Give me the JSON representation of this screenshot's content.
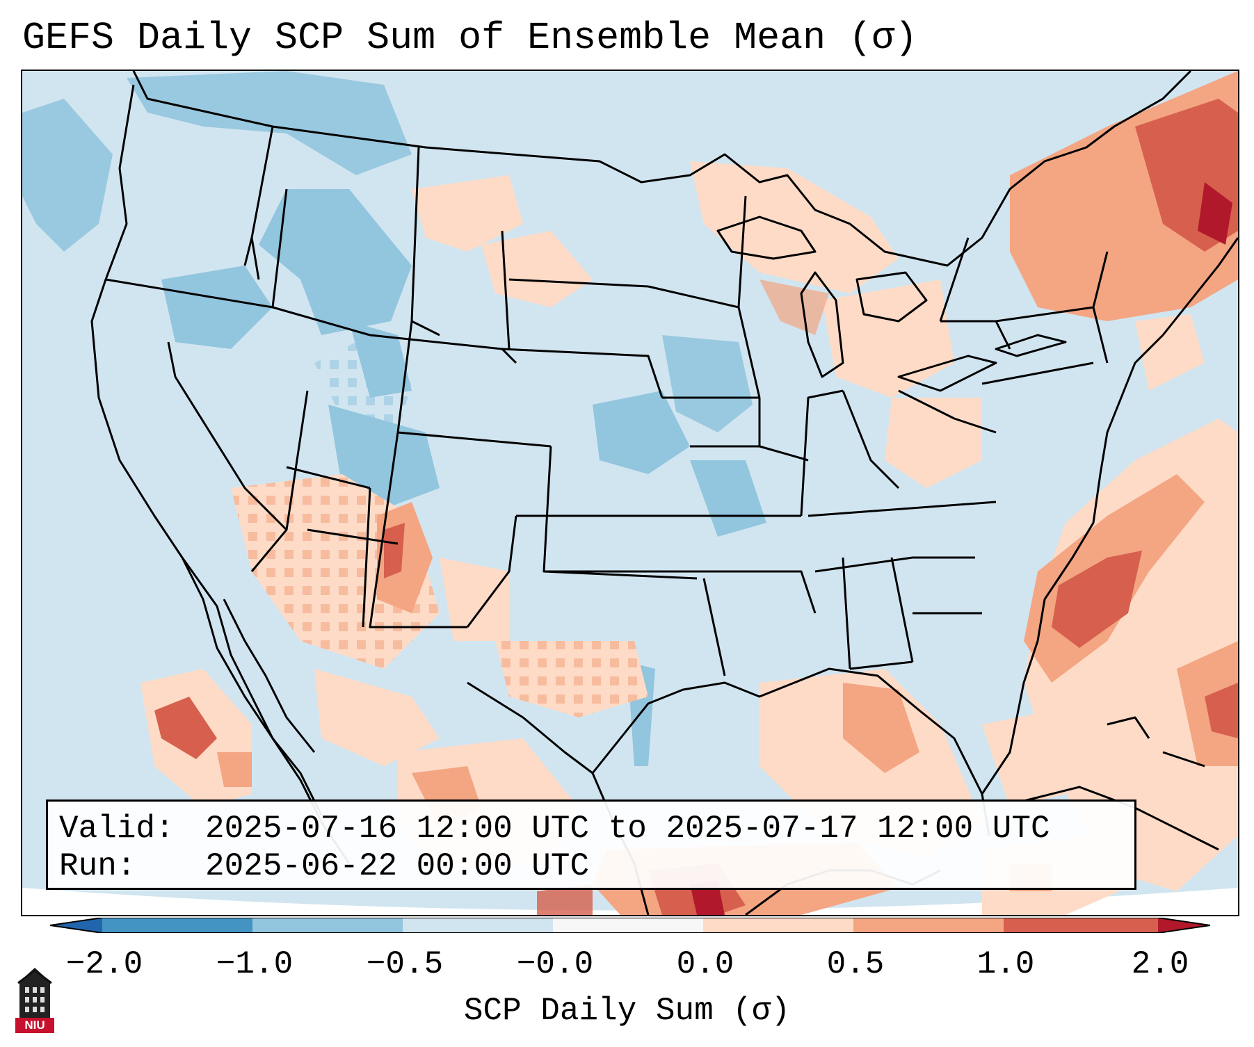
{
  "title": "GEFS Daily SCP Sum of Ensemble Mean (σ)",
  "info": {
    "valid_label": "Valid:",
    "valid_value": "2025-07-16 12:00 UTC to 2025-07-17 12:00 UTC",
    "run_label": "Run:",
    "run_value": "2025-06-22 00:00 UTC"
  },
  "colorbar": {
    "label": "SCP Daily Sum (σ)",
    "ticks": [
      "−2.0",
      "−1.0",
      "−0.5",
      "−0.0",
      "0.0",
      "0.5",
      "1.0",
      "2.0"
    ],
    "colors": [
      "#4393c3",
      "#92c5de",
      "#d1e5f0",
      "#f7f7f7",
      "#fddbc7",
      "#f4a582",
      "#d6604d"
    ],
    "under_color": "#2166ac",
    "over_color": "#b2182b"
  },
  "logo": {
    "text": "NIU",
    "color": "#c8102e"
  }
}
